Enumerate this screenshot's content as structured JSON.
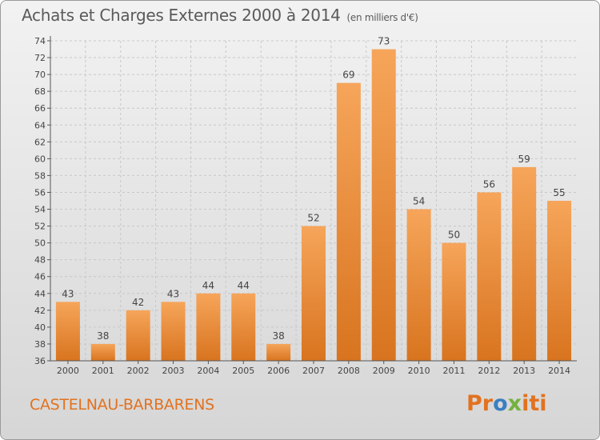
{
  "header": {
    "title": "Achats et Charges Externes 2000 à 2014",
    "subtitle": "(en milliers d'€)"
  },
  "footer": {
    "commune": "CASTELNAU-BARBARENS",
    "logo_parts": [
      "Pr",
      "o",
      "x",
      "iti"
    ]
  },
  "colors": {
    "bar_light": "#f6a55a",
    "bar_dark": "#d8741f",
    "grid": "#c8c8c8",
    "axis": "#555555",
    "text": "#444444",
    "commune": "#e2721f"
  },
  "chart_data": {
    "type": "bar",
    "categories": [
      "2000",
      "2001",
      "2002",
      "2003",
      "2004",
      "2005",
      "2006",
      "2007",
      "2008",
      "2009",
      "2010",
      "2011",
      "2012",
      "2013",
      "2014"
    ],
    "values": [
      43,
      38,
      42,
      43,
      44,
      44,
      38,
      52,
      69,
      73,
      54,
      50,
      56,
      59,
      55
    ],
    "ylim": [
      36,
      74
    ],
    "yticks": [
      36,
      38,
      40,
      42,
      44,
      46,
      48,
      50,
      52,
      54,
      56,
      58,
      60,
      62,
      64,
      66,
      68,
      70,
      72,
      74
    ],
    "grid": "horizontal-dashed",
    "data_labels": true
  }
}
